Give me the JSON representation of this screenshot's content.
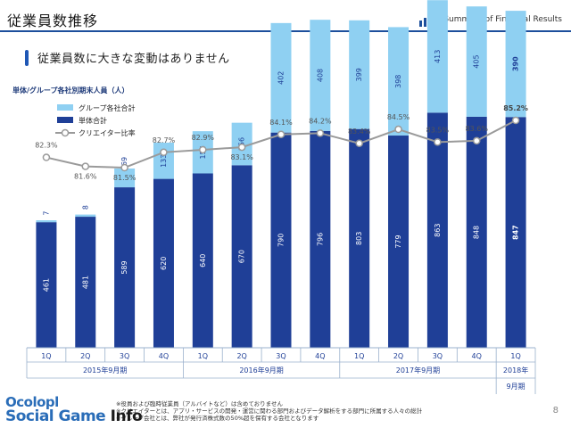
{
  "header": {
    "title": "従業員数推移",
    "brand": "Summary of Financial Results"
  },
  "section": {
    "heading": "従業員数に大きな変動はありません"
  },
  "colors": {
    "accent": "#1d4f9c",
    "group_total": "#8fd0f2",
    "standalone_total": "#1f3f97",
    "ratio_line": "#9a9a9a"
  },
  "chart_data": {
    "type": "bar",
    "title": "単体/グループ各社別期末人員（人）",
    "stacked": true,
    "categories": [
      "1Q",
      "2Q",
      "3Q",
      "4Q",
      "1Q",
      "2Q",
      "3Q",
      "4Q",
      "1Q",
      "2Q",
      "3Q",
      "4Q",
      "1Q"
    ],
    "category_groups": [
      {
        "label": "2015年9月期",
        "span": 4
      },
      {
        "label": "2016年9月期",
        "span": 4
      },
      {
        "label": "2017年9月期",
        "span": 4
      },
      {
        "label": "2018年",
        "label2": "9月期",
        "span": 1
      }
    ],
    "series": [
      {
        "name": "単体合計",
        "values": [
          461,
          481,
          589,
          620,
          640,
          670,
          790,
          796,
          803,
          779,
          863,
          848,
          847
        ]
      },
      {
        "name": "グループ各社合計",
        "values": [
          7,
          8,
          69,
          133,
          155,
          156,
          402,
          408,
          399,
          398,
          413,
          405,
          390
        ]
      },
      {
        "name": "クリエイター比率",
        "type": "line",
        "values": [
          82.3,
          81.6,
          81.5,
          82.7,
          82.9,
          83.1,
          84.1,
          84.2,
          83.4,
          84.5,
          83.5,
          83.6,
          85.2
        ],
        "labels": [
          "82.3%",
          "81.6%",
          "81.5%",
          "82.7%",
          "82.9%",
          "83.1%",
          "84.1%",
          "84.2%",
          "83.4%",
          "84.5%",
          "83.5%",
          "83.6%",
          "85.2%"
        ]
      }
    ],
    "legend": [
      "グループ各社合計",
      "単体合計",
      "クリエイター比率"
    ],
    "legend_position": "top-left",
    "grid": false
  },
  "footnotes": [
    "※役員および臨時従業員（アルバイトなど）は含めておりません",
    "※クリエイターとは、アプリ・サービスの開発・運営に関わる部門およびデータ解析をする部門に所属する人々の総計",
    "※グループ会社とは、弊社が発行済株式数の50%超を保有する会社となります"
  ],
  "page_number": "8",
  "watermark": {
    "top": "Ocolopl",
    "bottom": "Social Game",
    "info": "Info"
  }
}
